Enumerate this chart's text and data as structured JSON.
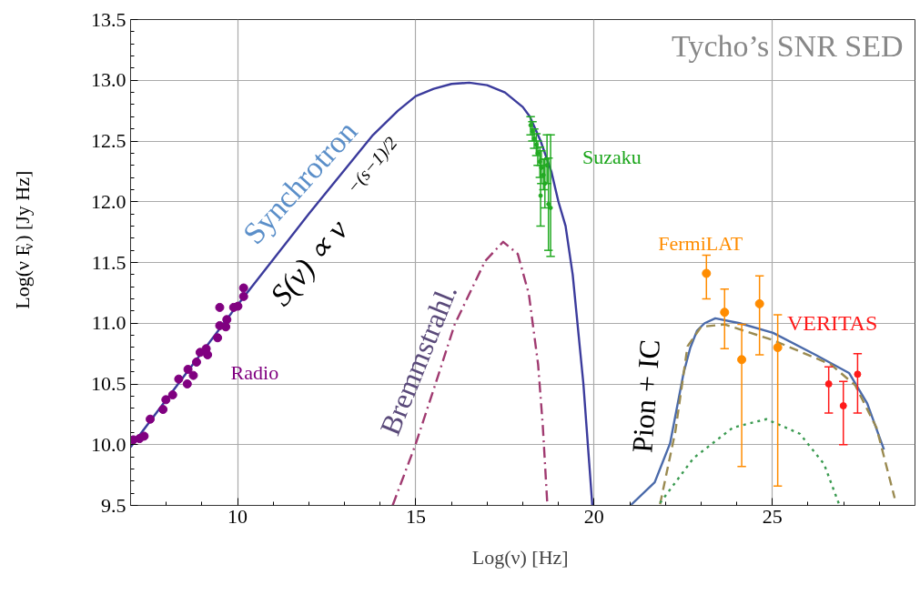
{
  "chart_data": {
    "type": "line",
    "title": "Tycho’s SNR SED",
    "xlabel": "Log(ν)  [Hz]",
    "ylabel": "Log(ν F$_{ν}$)  [Jy Hz]",
    "xlim": [
      7,
      29
    ],
    "ylim": [
      9.5,
      13.5
    ],
    "xticks": [
      10,
      15,
      20,
      25,
      {
        "value": 8,
        "label": null
      },
      {
        "value": 9,
        "label": null
      },
      {
        "value": 11,
        "label": null
      },
      {
        "value": 12,
        "label": null
      },
      {
        "value": 13,
        "label": null
      },
      {
        "value": 14,
        "label": null
      },
      {
        "value": 16,
        "label": null
      },
      {
        "value": 17,
        "label": null
      },
      {
        "value": 18,
        "label": null
      },
      {
        "value": 19,
        "label": null
      },
      {
        "value": 21,
        "label": null
      },
      {
        "value": 22,
        "label": null
      },
      {
        "value": 23,
        "label": null
      },
      {
        "value": 24,
        "label": null
      },
      {
        "value": 26,
        "label": null
      },
      {
        "value": 27,
        "label": null
      },
      {
        "value": 28,
        "label": null
      }
    ],
    "yticks": [
      {
        "value": 9.5,
        "label": "9.5"
      },
      {
        "value": 10,
        "label": "10.0"
      },
      {
        "value": 10.5,
        "label": "10.5"
      },
      {
        "value": 11,
        "label": "11.0"
      },
      {
        "value": 11.5,
        "label": "11.5"
      },
      {
        "value": 12,
        "label": "12.0"
      },
      {
        "value": 12.5,
        "label": "12.5"
      },
      {
        "value": 13,
        "label": "13.0"
      },
      {
        "value": 13.5,
        "label": "13.5"
      },
      {
        "value": 9.6,
        "label": null
      },
      {
        "value": 9.7,
        "label": null
      },
      {
        "value": 9.8,
        "label": null
      },
      {
        "value": 9.9,
        "label": null
      },
      {
        "value": 10.1,
        "label": null
      },
      {
        "value": 10.2,
        "label": null
      },
      {
        "value": 10.3,
        "label": null
      },
      {
        "value": 10.4,
        "label": null
      },
      {
        "value": 10.6,
        "label": null
      },
      {
        "value": 10.7,
        "label": null
      },
      {
        "value": 10.8,
        "label": null
      },
      {
        "value": 10.9,
        "label": null
      },
      {
        "value": 11.1,
        "label": null
      },
      {
        "value": 11.2,
        "label": null
      },
      {
        "value": 11.3,
        "label": null
      },
      {
        "value": 11.4,
        "label": null
      },
      {
        "value": 11.6,
        "label": null
      },
      {
        "value": 11.7,
        "label": null
      },
      {
        "value": 11.8,
        "label": null
      },
      {
        "value": 11.9,
        "label": null
      },
      {
        "value": 12.1,
        "label": null
      },
      {
        "value": 12.2,
        "label": null
      },
      {
        "value": 12.3,
        "label": null
      },
      {
        "value": 12.4,
        "label": null
      },
      {
        "value": 12.6,
        "label": null
      },
      {
        "value": 12.7,
        "label": null
      },
      {
        "value": 12.8,
        "label": null
      },
      {
        "value": 12.9,
        "label": null
      },
      {
        "value": 13.1,
        "label": null
      },
      {
        "value": 13.2,
        "label": null
      },
      {
        "value": 13.3,
        "label": null
      },
      {
        "value": 13.4,
        "label": null
      }
    ],
    "grid": true,
    "series": [
      {
        "color": "#3b3b9c",
        "line_style": "solid",
        "x": [
          7,
          10,
          12,
          13.8,
          14.5,
          15,
          15.5,
          16,
          16.5,
          17,
          17.5,
          18,
          18.2,
          18.5,
          18.8,
          19,
          19.2,
          19.4,
          19.7,
          19.95
        ],
        "values": [
          9.98,
          11.15,
          11.9,
          12.55,
          12.75,
          12.87,
          12.93,
          12.97,
          12.98,
          12.96,
          12.9,
          12.78,
          12.7,
          12.5,
          12.25,
          12.0,
          11.8,
          11.4,
          10.5,
          9.5
        ]
      },
      {
        "color": "#a03a70",
        "line_style": "dashdot",
        "x": [
          14.35,
          14.99,
          15.54,
          16.09,
          16.94,
          17.45,
          17.86,
          18.17,
          18.43,
          18.56,
          18.69
        ],
        "values": [
          9.5,
          10.0,
          10.49,
          10.99,
          11.51,
          11.67,
          11.57,
          11.24,
          10.66,
          10.16,
          9.5
        ]
      },
      {
        "color": "#4a6aaa",
        "line_style": "solid",
        "x": [
          21.02,
          21.7,
          22.13,
          22.51,
          22.7,
          22.89,
          23.1,
          23.4,
          24.08,
          25.02,
          26.21,
          27.15,
          27.66,
          28.13
        ],
        "values": [
          9.5,
          9.69,
          10.01,
          10.59,
          10.8,
          10.94,
          11.0,
          11.04,
          11.0,
          10.92,
          10.74,
          10.59,
          10.34,
          9.96
        ]
      },
      {
        "color": "#9a8a50",
        "line_style": "dashed",
        "x": [
          21.85,
          22.28,
          22.62,
          23.0,
          23.66,
          25.02,
          26.64,
          27.32,
          27.92,
          28.43
        ],
        "values": [
          9.51,
          10.11,
          10.81,
          10.97,
          10.99,
          10.86,
          10.66,
          10.49,
          10.14,
          9.56
        ]
      },
      {
        "color": "#3a9a50",
        "line_style": "dotted",
        "x": [
          21.85,
          22.79,
          23.89,
          24.83,
          25.77,
          26.45,
          26.87
        ],
        "values": [
          9.52,
          9.89,
          10.14,
          10.21,
          10.09,
          9.84,
          9.51
        ]
      },
      {
        "type": "scatter",
        "color": "#800080",
        "marker": "circle",
        "x": [
          7.08,
          7.25,
          7.38,
          7.55,
          7.91,
          7.99,
          8.18,
          8.35,
          8.59,
          8.61,
          8.76,
          8.85,
          8.95,
          9.12,
          9.16,
          9.44,
          9.5,
          9.7,
          9.67,
          9.5,
          9.89,
          10.01,
          10.17,
          10.17
        ],
        "values": [
          10.04,
          10.05,
          10.07,
          10.21,
          10.29,
          10.37,
          10.41,
          10.54,
          10.5,
          10.62,
          10.57,
          10.68,
          10.76,
          10.79,
          10.74,
          10.88,
          10.98,
          11.03,
          10.97,
          11.13,
          11.13,
          11.14,
          11.29,
          11.22
        ]
      },
      {
        "type": "scatter",
        "color": "#22aa22",
        "marker": "circle",
        "x": [
          18.22,
          18.27,
          18.32,
          18.38,
          18.42,
          18.48,
          18.52,
          18.58,
          18.62,
          18.5,
          18.68,
          18.72,
          18.78
        ],
        "values": [
          12.63,
          12.58,
          12.52,
          12.47,
          12.4,
          12.33,
          12.28,
          12.22,
          12.15,
          12.05,
          12.3,
          11.98,
          11.95
        ],
        "errors": [
          [
            12.55,
            12.7
          ],
          [
            12.5,
            12.66
          ],
          [
            12.44,
            12.6
          ],
          [
            12.38,
            12.56
          ],
          [
            12.3,
            12.5
          ],
          [
            12.2,
            12.45
          ],
          [
            12.15,
            12.42
          ],
          [
            12.1,
            12.35
          ],
          [
            11.95,
            12.35
          ],
          [
            11.8,
            12.3
          ],
          [
            12.15,
            12.55
          ],
          [
            11.6,
            12.36
          ],
          [
            11.55,
            12.55
          ]
        ]
      },
      {
        "type": "scatter",
        "color": "#ff8c00",
        "marker": "circle",
        "x": [
          23.15,
          23.66,
          24.14,
          24.64,
          25.15
        ],
        "values": [
          11.41,
          11.09,
          10.7,
          11.16,
          10.8
        ],
        "errors": [
          [
            11.2,
            11.56
          ],
          [
            10.79,
            11.28
          ],
          [
            9.82,
            10.99
          ],
          [
            10.74,
            11.39
          ],
          [
            9.66,
            11.07
          ]
        ]
      },
      {
        "type": "scatter",
        "color": "#ff1a1a",
        "marker": "circle",
        "x": [
          26.58,
          26.99,
          27.39
        ],
        "values": [
          10.5,
          10.32,
          10.58
        ],
        "errors": [
          [
            10.26,
            10.64
          ],
          [
            10.0,
            10.52
          ],
          [
            10.26,
            10.75
          ]
        ]
      }
    ],
    "annotations": [
      "Synchrotron",
      "S(ν) ∝ ν$^{−(s−1)/2}$",
      "Radio",
      "Bremmstrahl.",
      "Suzaku",
      "FermiLAT",
      "VERITAS",
      "Pion + IC"
    ]
  }
}
